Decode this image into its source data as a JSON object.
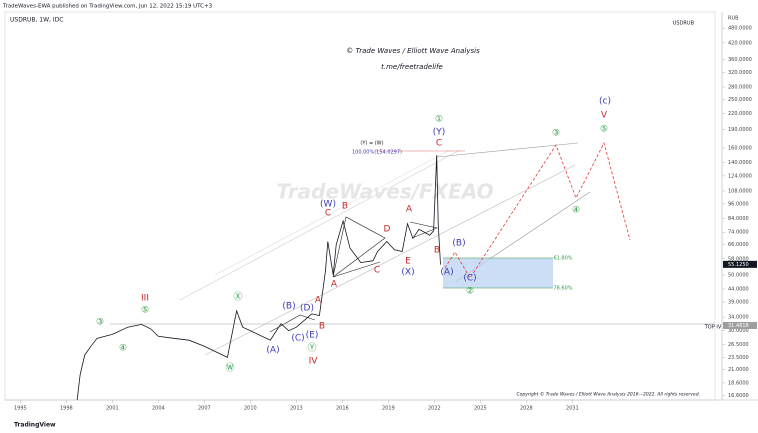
{
  "header": "TradeWaves-EWA published on TradingView.com, Jun 12, 2022 15:19 UTC+3",
  "footer": "TradingView",
  "chart_data": {
    "type": "line",
    "title": "USDRUB, 1W, IDC",
    "symbol": "USDRUB",
    "currency": "RUB",
    "subtitle": "© Trade Waves / Elliott Wave Analysis",
    "link": "t.me/freetradelife",
    "watermark": "TradeWaves/FXEAO",
    "copyright": "Copyright © Trade Waves / Elliott Wave Analysis 2016—2022. All rights reserved.",
    "color": "#131722",
    "log_scale": true,
    "x": [
      1998.6,
      1998.9,
      1999.2,
      1999.6,
      2000,
      2001,
      2002,
      2002.9,
      2003.5,
      2004,
      2005,
      2006,
      2007,
      2008.5,
      2009.1,
      2009.5,
      2010,
      2011.3,
      2012,
      2012.5,
      2013,
      2014,
      2014.5,
      2014.9,
      2015.05,
      2015.4,
      2015.6,
      2016.05,
      2016.5,
      2017.2,
      2018,
      2018.3,
      2018.9,
      2019.4,
      2019.9,
      2020.25,
      2020.6,
      2021,
      2021.7,
      2021.95,
      2022.15,
      2022.25,
      2022.4
    ],
    "values": [
      14,
      20,
      24,
      26,
      28,
      29,
      31,
      31.8,
      30.5,
      28.5,
      28,
      27.5,
      26,
      23.5,
      36,
      31,
      30,
      27.5,
      32,
      30,
      31,
      35,
      34.5,
      52,
      68,
      50,
      66,
      82,
      64,
      56,
      57,
      62,
      68,
      63,
      62,
      80,
      70,
      76,
      72,
      75,
      150,
      80,
      55
    ],
    "xlim": [
      1994,
      2040.3
    ],
    "xticks": [
      1995,
      1998,
      2001,
      2004,
      2007,
      2010,
      2013,
      2016,
      2019,
      2022,
      2025,
      2028,
      2031
    ],
    "ylim": [
      15.9,
      557
    ],
    "yticks": [
      {
        "value": 480,
        "label": "480.0000"
      },
      {
        "value": 420,
        "label": "420.0000"
      },
      {
        "value": 360,
        "label": "360.0000"
      },
      {
        "value": 320,
        "label": "320.0000"
      },
      {
        "value": 280,
        "label": "280.0000"
      },
      {
        "value": 250,
        "label": "250.0000"
      },
      {
        "value": 220,
        "label": "220.0000"
      },
      {
        "value": 190,
        "label": "190.0000"
      },
      {
        "value": 160,
        "label": "160.0000"
      },
      {
        "value": 140,
        "label": "140.0000"
      },
      {
        "value": 124,
        "label": "124.0000"
      },
      {
        "value": 108,
        "label": "108.0000"
      },
      {
        "value": 96,
        "label": "96.0000"
      },
      {
        "value": 84,
        "label": "84.0000"
      },
      {
        "value": 74,
        "label": "74.0000"
      },
      {
        "value": 66,
        "label": "66.0000"
      },
      {
        "value": 58,
        "label": "58.0000"
      },
      {
        "value": 50,
        "label": "50.0000"
      },
      {
        "value": 44,
        "label": "44.0000"
      },
      {
        "value": 39,
        "label": "39.0000"
      },
      {
        "value": 34,
        "label": "34.0000"
      },
      {
        "value": 30,
        "label": "30.0000"
      },
      {
        "value": 26.5,
        "label": "26.5000"
      },
      {
        "value": 23.5,
        "label": "23.5000"
      },
      {
        "value": 21,
        "label": "21.0000"
      },
      {
        "value": 18.6,
        "label": "18.6000"
      },
      {
        "value": 16.6,
        "label": "16.6000"
      }
    ],
    "markers": [
      {
        "value": 55.125,
        "label": "55.1250",
        "color": "#131722"
      },
      {
        "value": 31.4818,
        "label": "31.4818",
        "color": "#9e9e9e"
      }
    ],
    "annotations": [
      {
        "text": "③",
        "color": "#2e9b41"
      },
      {
        "text": "④",
        "color": "#2e9b41"
      },
      {
        "text": "⑤",
        "color": "#2e9b41"
      },
      {
        "text": "III",
        "color": "#c62828"
      },
      {
        "text": "Ⓦ",
        "color": "#2e9b41"
      },
      {
        "text": "Ⓧ",
        "color": "#2e9b41"
      },
      {
        "text": "(A)",
        "color": "#3b3bb3"
      },
      {
        "text": "(B)",
        "color": "#3b3bb3"
      },
      {
        "text": "(C)",
        "color": "#3b3bb3"
      },
      {
        "text": "(D)",
        "color": "#3b3bb3"
      },
      {
        "text": "(E)",
        "color": "#3b3bb3"
      },
      {
        "text": "Ⓨ",
        "color": "#2e9b41"
      },
      {
        "text": "IV",
        "color": "#c62828"
      },
      {
        "text": "A",
        "color": "#c62828"
      },
      {
        "text": "B",
        "color": "#c62828"
      },
      {
        "text": "A",
        "color": "#c62828"
      },
      {
        "text": "(W)",
        "color": "#3b3bb3"
      },
      {
        "text": "C",
        "color": "#c62828"
      },
      {
        "text": "B",
        "color": "#c62828"
      },
      {
        "text": "C",
        "color": "#c62828"
      },
      {
        "text": "D",
        "color": "#c62828"
      },
      {
        "text": "E",
        "color": "#c62828"
      },
      {
        "text": "(X)",
        "color": "#3b3bb3"
      },
      {
        "text": "A",
        "color": "#c62828"
      },
      {
        "text": "B",
        "color": "#c62828"
      },
      {
        "text": "(A)",
        "color": "#3b3bb3"
      },
      {
        "text": "(B)",
        "color": "#3b3bb3"
      },
      {
        "text": "(C)",
        "color": "#3b3bb3"
      },
      {
        "text": "②",
        "color": "#2e9b41"
      },
      {
        "text": "①",
        "color": "#2e9b41"
      },
      {
        "text": "(Y)",
        "color": "#3b3bb3"
      },
      {
        "text": "C",
        "color": "#c62828"
      },
      {
        "text": "(Y) = (W)",
        "color": "#131722"
      },
      {
        "text": "100.00%(154.0297)",
        "color": "#3b3bb3"
      },
      {
        "text": "③",
        "color": "#2e9b41"
      },
      {
        "text": "④",
        "color": "#2e9b41"
      },
      {
        "text": "⑤",
        "color": "#2e9b41"
      },
      {
        "text": "V",
        "color": "#c62828"
      },
      {
        "text": "(c)",
        "color": "#3b3bb3"
      },
      {
        "text": "61.80%",
        "color": "#2e9b41"
      },
      {
        "text": "78.60%",
        "color": "#2e9b41"
      },
      {
        "text": "TOP IV",
        "color": "#131722"
      }
    ]
  }
}
